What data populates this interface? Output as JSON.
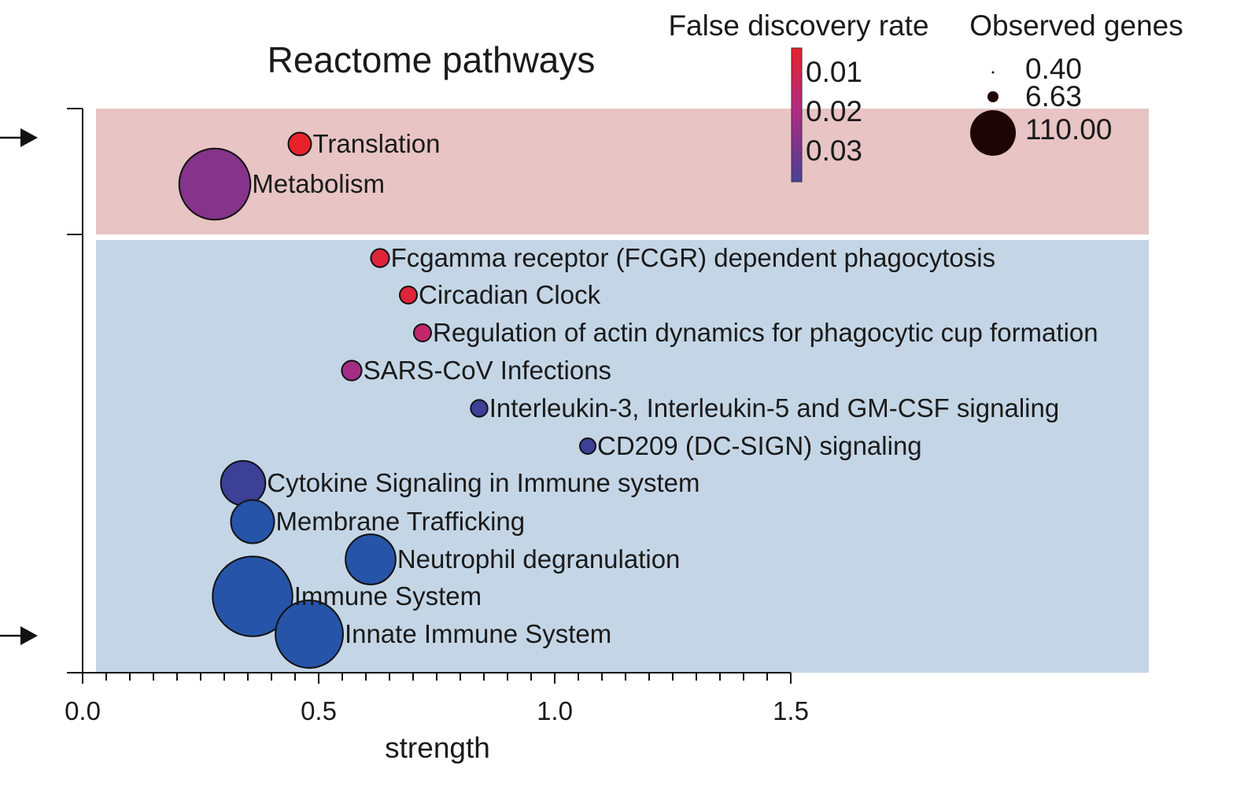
{
  "chart_data": {
    "type": "scatter",
    "title": "Reactome pathways",
    "xlabel": "strength",
    "xlim": [
      0,
      1.5
    ],
    "x_ticks": [
      "0.0",
      "0.5",
      "1.0",
      "1.5"
    ],
    "x_minor_step": 0.05,
    "groups": [
      {
        "color": "#e8c4c4"
      },
      {
        "color": "#c4d6e6"
      }
    ],
    "points": [
      {
        "label": "Translation",
        "x": 0.46,
        "fdr": 0.005,
        "genes": 2.5,
        "group": 0
      },
      {
        "label": "Metabolism",
        "x": 0.28,
        "fdr": 0.03,
        "genes": 45,
        "group": 0
      },
      {
        "label": "Fcgamma receptor (FCGR) dependent phagocytosis",
        "x": 0.63,
        "fdr": 0.008,
        "genes": 1.2,
        "group": 1
      },
      {
        "label": "Circadian Clock",
        "x": 0.69,
        "fdr": 0.008,
        "genes": 1.0,
        "group": 1
      },
      {
        "label": "Regulation of actin dynamics for phagocytic cup formation",
        "x": 0.72,
        "fdr": 0.018,
        "genes": 1.0,
        "group": 1
      },
      {
        "label": "SARS-CoV Infections",
        "x": 0.57,
        "fdr": 0.025,
        "genes": 1.6,
        "group": 1
      },
      {
        "label": "Interleukin-3, Interleukin-5 and GM-CSF signaling",
        "x": 0.84,
        "fdr": 0.034,
        "genes": 0.9,
        "group": 1
      },
      {
        "label": "CD209 (DC-SIGN) signaling",
        "x": 1.07,
        "fdr": 0.034,
        "genes": 0.7,
        "group": 1
      },
      {
        "label": "Cytokine Signaling in Immune system",
        "x": 0.34,
        "fdr": 0.034,
        "genes": 15,
        "group": 1
      },
      {
        "label": "Membrane Trafficking",
        "x": 0.36,
        "fdr": 0.038,
        "genes": 14,
        "group": 1
      },
      {
        "label": "Neutrophil degranulation",
        "x": 0.61,
        "fdr": 0.04,
        "genes": 20,
        "group": 1
      },
      {
        "label": "Immune System",
        "x": 0.36,
        "fdr": 0.04,
        "genes": 58,
        "group": 1
      },
      {
        "label": "Innate Immune System",
        "x": 0.48,
        "fdr": 0.04,
        "genes": 40,
        "group": 1
      }
    ],
    "legend_fdr": {
      "title": "False discovery rate",
      "values": [
        "0.01",
        "0.02",
        "0.03"
      ],
      "colors": [
        "#e8222a",
        "#b22a82",
        "#4a4096"
      ]
    },
    "legend_size": {
      "title": "Observed genes",
      "values": [
        "0.40",
        "6.63",
        "110.00"
      ],
      "swatch_color": "#1e0505"
    },
    "arrows": [
      {
        "points_to": "Translation"
      },
      {
        "points_to": "Innate Immune System"
      }
    ]
  }
}
